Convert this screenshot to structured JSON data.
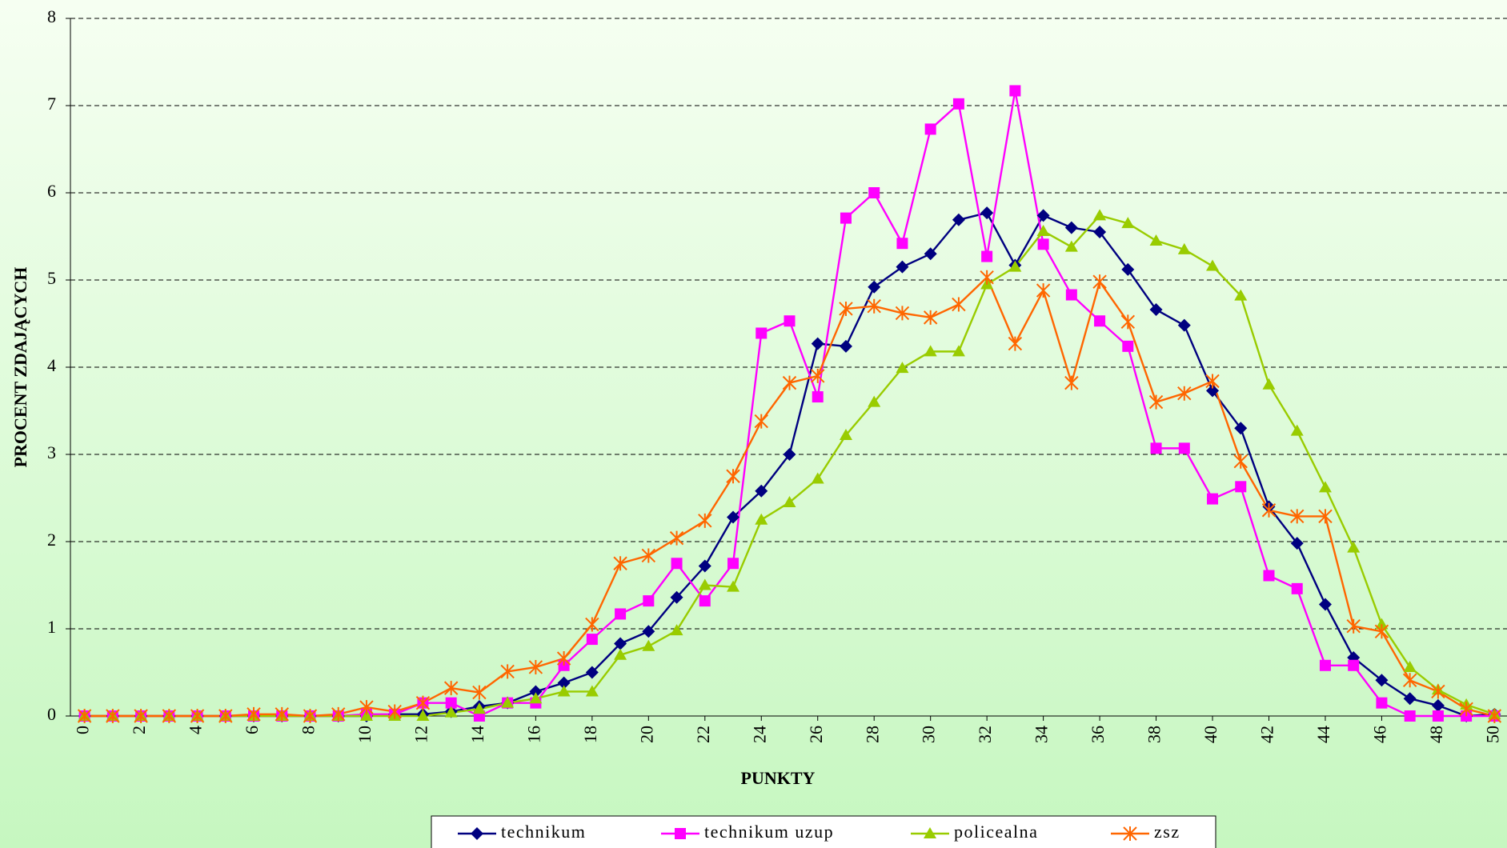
{
  "chart_data": {
    "type": "line",
    "ylabel": "PROCENT ZDAJĄCYCH",
    "xlabel": "PUNKTY",
    "x": [
      0,
      1,
      2,
      3,
      4,
      5,
      6,
      7,
      8,
      9,
      10,
      11,
      12,
      13,
      14,
      15,
      16,
      17,
      18,
      19,
      20,
      21,
      22,
      23,
      24,
      25,
      26,
      27,
      28,
      29,
      30,
      31,
      32,
      33,
      34,
      35,
      36,
      37,
      38,
      39,
      40,
      41,
      42,
      43,
      44,
      45,
      46,
      47,
      48,
      49,
      50
    ],
    "xlim": [
      -0.5,
      50.5
    ],
    "xticks": [
      0,
      2,
      4,
      6,
      8,
      10,
      12,
      14,
      16,
      18,
      20,
      22,
      24,
      26,
      28,
      30,
      32,
      34,
      36,
      38,
      40,
      42,
      44,
      46,
      48,
      50
    ],
    "ylim": [
      0,
      8
    ],
    "yticks": [
      0,
      1,
      2,
      3,
      4,
      5,
      6,
      7,
      8
    ],
    "grid": true,
    "legend": "bottom",
    "series": [
      {
        "name": "technikum",
        "color": "#000080",
        "marker": "diamond",
        "values": [
          0,
          0,
          0,
          0,
          0,
          0,
          0,
          0,
          0,
          0,
          0,
          0.02,
          0.02,
          0.05,
          0.11,
          0.15,
          0.28,
          0.38,
          0.5,
          0.83,
          0.97,
          1.36,
          1.72,
          2.28,
          2.58,
          3.0,
          4.27,
          4.24,
          4.92,
          5.15,
          5.3,
          5.69,
          5.77,
          5.17,
          5.74,
          5.6,
          5.55,
          5.12,
          4.66,
          4.48,
          3.73,
          3.3,
          2.4,
          1.98,
          1.28,
          0.67,
          0.41,
          0.2,
          0.12,
          0.0,
          0.02
        ]
      },
      {
        "name": "technikum uzup",
        "color": "#ff00ff",
        "marker": "square",
        "values": [
          0,
          0,
          0,
          0,
          0,
          0,
          0,
          0,
          0,
          0,
          0.02,
          0.02,
          0.15,
          0.15,
          0.0,
          0.15,
          0.15,
          0.58,
          0.88,
          1.17,
          1.32,
          1.75,
          1.32,
          1.75,
          4.39,
          4.53,
          3.66,
          5.71,
          6.0,
          5.42,
          6.73,
          7.02,
          5.27,
          7.17,
          5.41,
          4.83,
          4.53,
          4.24,
          3.07,
          3.07,
          2.49,
          2.63,
          1.61,
          1.46,
          0.58,
          0.58,
          0.15,
          0.0,
          0.0,
          0.0,
          0.0
        ]
      },
      {
        "name": "policealna",
        "color": "#99cc00",
        "marker": "triangle",
        "values": [
          0,
          0,
          0,
          0,
          0,
          0,
          0,
          0,
          0,
          0,
          0,
          0,
          0.0,
          0.04,
          0.08,
          0.15,
          0.2,
          0.28,
          0.28,
          0.7,
          0.8,
          0.98,
          1.5,
          1.48,
          2.25,
          2.45,
          2.72,
          3.22,
          3.6,
          3.99,
          4.18,
          4.18,
          4.95,
          5.15,
          5.56,
          5.38,
          5.74,
          5.65,
          5.45,
          5.35,
          5.16,
          4.82,
          3.8,
          3.27,
          2.62,
          1.93,
          1.05,
          0.56,
          0.3,
          0.13,
          0.02
        ]
      },
      {
        "name": "zsz",
        "color": "#ff6600",
        "marker": "asterisk",
        "values": [
          0,
          0,
          0,
          0,
          0,
          0,
          0.02,
          0.02,
          0.0,
          0.02,
          0.1,
          0.05,
          0.15,
          0.32,
          0.27,
          0.51,
          0.56,
          0.66,
          1.05,
          1.75,
          1.84,
          2.04,
          2.24,
          2.75,
          3.38,
          3.82,
          3.9,
          4.67,
          4.7,
          4.62,
          4.57,
          4.72,
          5.03,
          4.27,
          4.88,
          3.82,
          4.98,
          4.52,
          3.6,
          3.7,
          3.84,
          2.92,
          2.36,
          2.29,
          2.29,
          1.03,
          0.97,
          0.41,
          0.28,
          0.08,
          0.0
        ]
      }
    ]
  }
}
